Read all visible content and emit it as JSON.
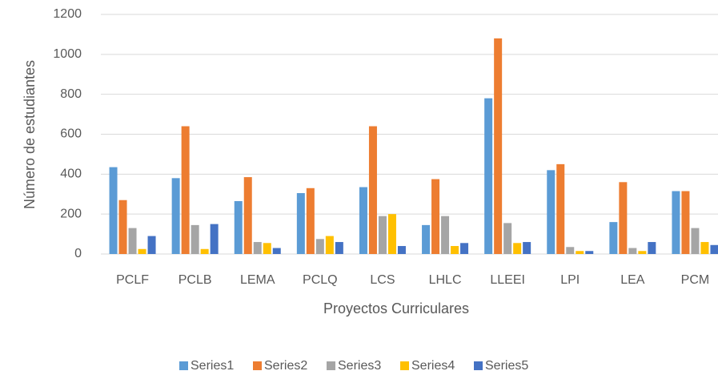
{
  "chart_data": {
    "type": "bar",
    "x_label": "Proyectos  Curriculares",
    "y_label": "Número de estudiantes",
    "categories": [
      "PCLF",
      "PCLB",
      "LEMA",
      "PCLQ",
      "LCS",
      "LHLC",
      "LLEEI",
      "LPI",
      "LEA",
      "PCM"
    ],
    "series": [
      {
        "name": "Series1",
        "color": "#5b9bd5",
        "values": [
          435,
          380,
          265,
          305,
          335,
          145,
          780,
          420,
          160,
          315
        ]
      },
      {
        "name": "Series2",
        "color": "#ed7d31",
        "values": [
          270,
          640,
          385,
          330,
          640,
          375,
          1080,
          450,
          360,
          315
        ]
      },
      {
        "name": "Series3",
        "color": "#a5a5a5",
        "values": [
          130,
          145,
          60,
          75,
          190,
          190,
          155,
          35,
          30,
          130
        ]
      },
      {
        "name": "Series4",
        "color": "#ffc000",
        "values": [
          25,
          25,
          55,
          90,
          200,
          40,
          55,
          15,
          15,
          60
        ]
      },
      {
        "name": "Series5",
        "color": "#4472c4",
        "values": [
          90,
          150,
          30,
          60,
          40,
          55,
          60,
          15,
          60,
          45
        ]
      }
    ],
    "ylim": [
      0,
      1200
    ],
    "yticks": [
      0,
      200,
      400,
      600,
      800,
      1000,
      1200
    ],
    "grid": true,
    "legend": "bottom"
  }
}
